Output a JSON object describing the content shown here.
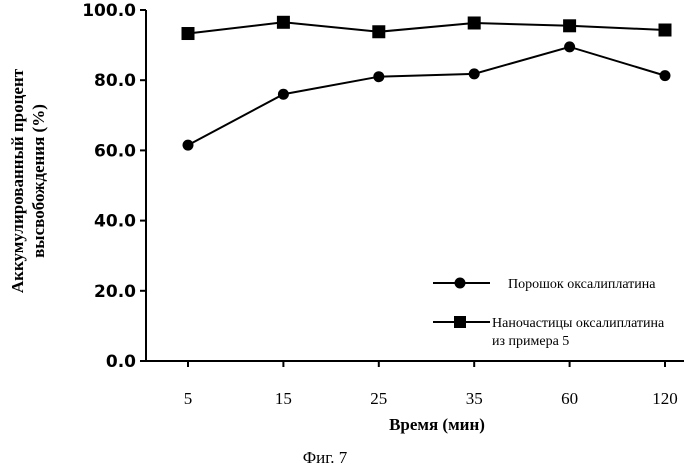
{
  "chart_data": {
    "type": "line",
    "categories": [
      "5",
      "15",
      "25",
      "35",
      "60",
      "120"
    ],
    "series": [
      {
        "name": "Порошок оксалиплатина",
        "marker": "circle",
        "values": [
          61.5,
          76.0,
          81.0,
          81.8,
          89.5,
          81.3
        ]
      },
      {
        "name_lines": [
          "Наночастицы оксалиплатина",
          "из примера 5"
        ],
        "marker": "square",
        "values": [
          93.3,
          96.5,
          93.8,
          96.3,
          95.5,
          94.3
        ]
      }
    ],
    "xlabel": "Время (мин)",
    "ylabel_lines": [
      "Аккумулированный процент",
      "высвобождения (%)"
    ],
    "ylim": [
      0,
      100
    ],
    "yticks": [
      0,
      20,
      40,
      60,
      80,
      100
    ],
    "ytick_labels": [
      "0.0",
      "20.0",
      "40.0",
      "60.0",
      "80.0",
      "100.0"
    ],
    "grid": false,
    "legend_position": "bottom-right",
    "colors": {
      "line": "#000000",
      "background": "#ffffff"
    }
  },
  "caption": "Фиг. 7"
}
